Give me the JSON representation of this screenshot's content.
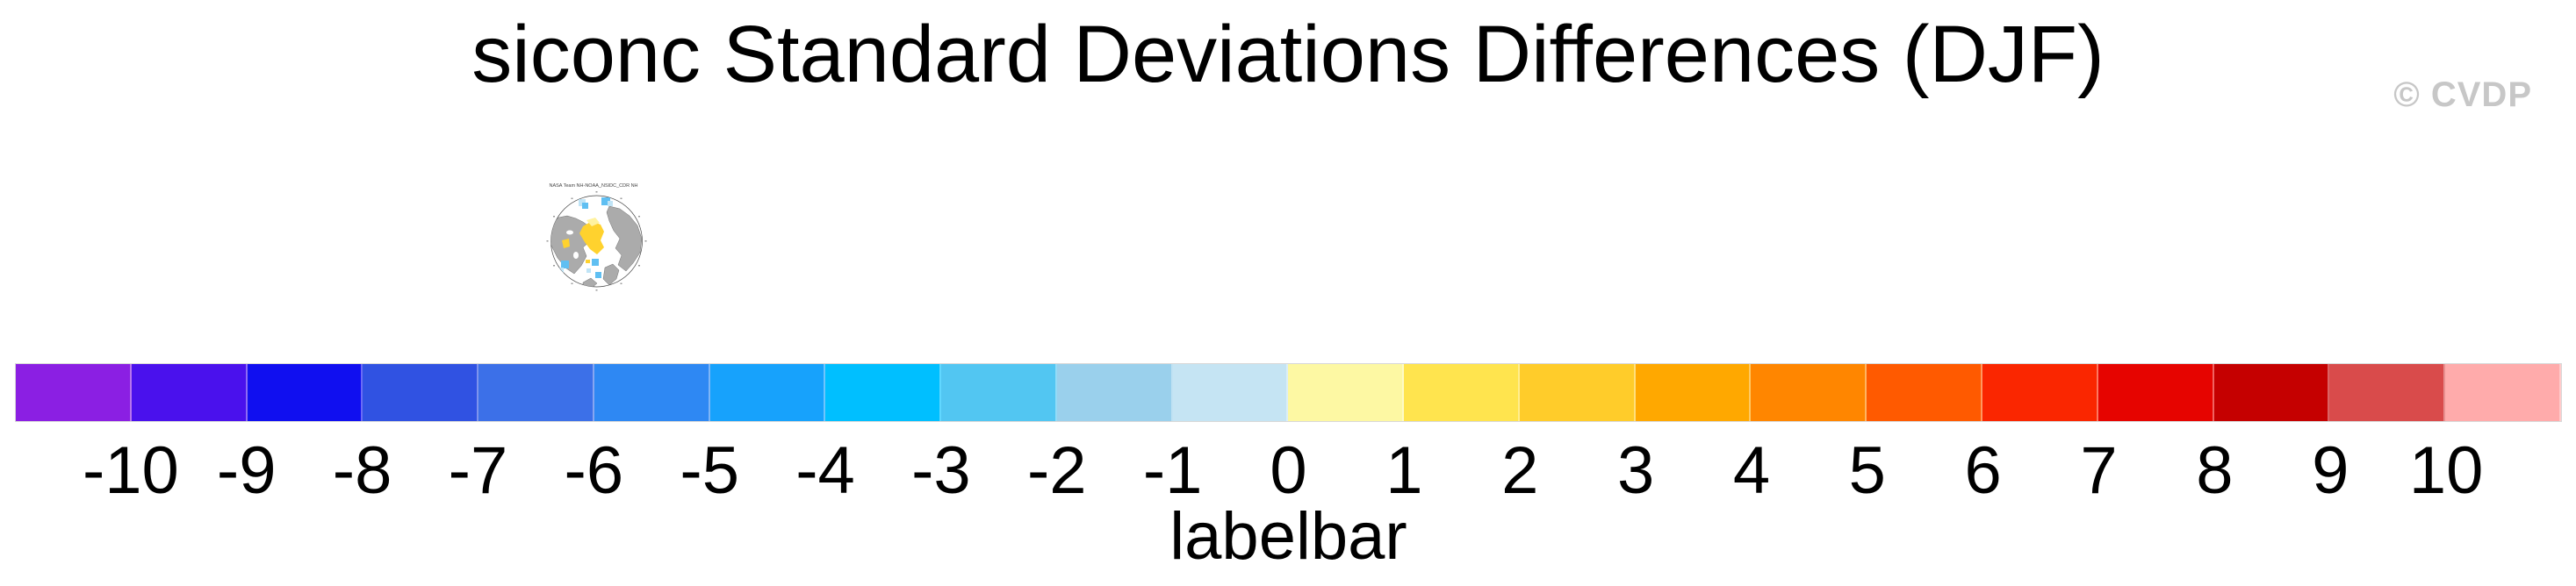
{
  "title": "siconc Standard Deviations Differences (DJF)",
  "watermark": "© CVDP",
  "map_inset": {
    "title": "NASA Team NH-NOAA_NSIDC_CDR NH",
    "land_color": "#ababab",
    "ocean_color": "#ffffff",
    "coast_color": "#5a5a5a",
    "positive_color": "#ffd22e",
    "positive_light_color": "#fff2a0",
    "negative_color": "#5fbff2",
    "negative_light_color": "#c0e4f6"
  },
  "chart_data": {
    "type": "heatmap",
    "subtype": "horizontal-colorbar-legend",
    "title": "siconc Standard Deviations Differences (DJF)",
    "xlabel": "labelbar",
    "tick_labels": [
      "-10",
      "-9",
      "-8",
      "-7",
      "-6",
      "-5",
      "-4",
      "-3",
      "-2",
      "-1",
      "0",
      "1",
      "2",
      "3",
      "4",
      "5",
      "6",
      "7",
      "8",
      "9",
      "10"
    ],
    "ticks_at_segment_boundaries": true,
    "segment_colors": [
      "#8B1FE3",
      "#4A11ED",
      "#100FF0",
      "#3052E2",
      "#3C70E8",
      "#2E88F3",
      "#17A2FC",
      "#00BFFF",
      "#52C6F2",
      "#9AD0EC",
      "#C5E4F3",
      "#FDF8A3",
      "#FFE44E",
      "#FFCC2A",
      "#FFA800",
      "#FF8600",
      "#FF5A00",
      "#FA2600",
      "#E60400",
      "#C50000",
      "#D94B4B",
      "#FFABAB"
    ],
    "legend_position": "bottom",
    "grid": false
  }
}
